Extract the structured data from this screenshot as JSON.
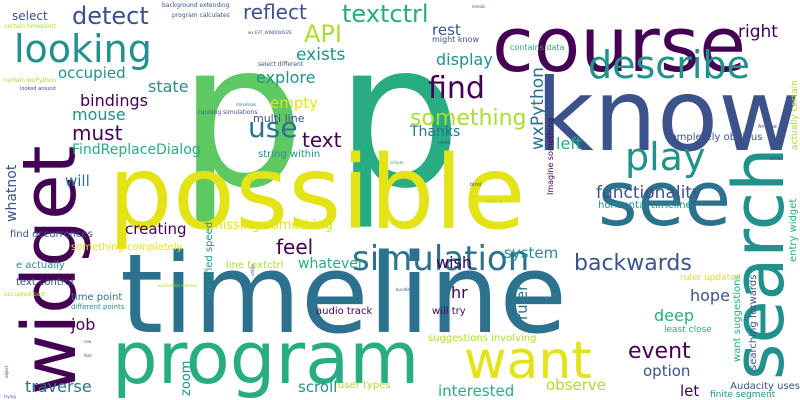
{
  "palette": {
    "dark_purple": "#440154",
    "indigo": "#3b528b",
    "blue": "#2c728e",
    "teal": "#21918c",
    "green": "#27ad81",
    "light_green": "#5ec962",
    "lime": "#addc30",
    "yellow": "#e2e418"
  },
  "words": [
    {
      "text": "p",
      "color": "light_green"
    },
    {
      "text": "p",
      "color": "green"
    },
    {
      "text": "timeline",
      "color": "blue"
    },
    {
      "text": "possible",
      "color": "yellow"
    },
    {
      "text": "know",
      "color": "indigo"
    },
    {
      "text": "course",
      "color": "dark_purple"
    },
    {
      "text": "widget",
      "color": "dark_purple"
    },
    {
      "text": "program",
      "color": "green"
    },
    {
      "text": "see",
      "color": "blue"
    },
    {
      "text": "search",
      "color": "teal"
    },
    {
      "text": "want",
      "color": "yellow"
    },
    {
      "text": "looking",
      "color": "teal"
    },
    {
      "text": "describe",
      "color": "teal"
    },
    {
      "text": "play",
      "color": "teal"
    },
    {
      "text": "simulation",
      "color": "blue"
    },
    {
      "text": "find",
      "color": "dark_purple"
    },
    {
      "text": "use",
      "color": "blue"
    },
    {
      "text": "detect",
      "color": "indigo"
    },
    {
      "text": "API",
      "color": "lime"
    },
    {
      "text": "textctrl",
      "color": "green"
    },
    {
      "text": "reflect",
      "color": "indigo"
    },
    {
      "text": "right",
      "color": "dark_purple"
    },
    {
      "text": "something",
      "color": "lime"
    },
    {
      "text": "text",
      "color": "dark_purple"
    },
    {
      "text": "must",
      "color": "dark_purple"
    },
    {
      "text": "feel",
      "color": "dark_purple"
    },
    {
      "text": "backwards",
      "color": "indigo"
    },
    {
      "text": "event",
      "color": "dark_purple"
    },
    {
      "text": "functionality",
      "color": "indigo"
    },
    {
      "text": "wxPython",
      "color": "blue"
    },
    {
      "text": "exists",
      "color": "teal"
    },
    {
      "text": "explore",
      "color": "teal"
    },
    {
      "text": "display",
      "color": "teal"
    },
    {
      "text": "occupied",
      "color": "teal"
    },
    {
      "text": "mouse",
      "color": "teal"
    },
    {
      "text": "state",
      "color": "teal"
    },
    {
      "text": "bindings",
      "color": "dark_purple"
    },
    {
      "text": "FindReplaceDialog",
      "color": "green"
    },
    {
      "text": "empty",
      "color": "yellow"
    },
    {
      "text": "Thanks",
      "color": "blue"
    },
    {
      "text": "rest",
      "color": "indigo"
    },
    {
      "text": "left",
      "color": "green"
    },
    {
      "text": "creating",
      "color": "dark_purple"
    },
    {
      "text": "whatever",
      "color": "green"
    },
    {
      "text": "wish",
      "color": "dark_purple"
    },
    {
      "text": "system",
      "color": "teal"
    },
    {
      "text": "hr",
      "color": "dark_purple"
    },
    {
      "text": "deep",
      "color": "green"
    },
    {
      "text": "hope",
      "color": "indigo"
    },
    {
      "text": "option",
      "color": "indigo"
    },
    {
      "text": "job",
      "color": "dark_purple"
    },
    {
      "text": "traverse",
      "color": "blue"
    },
    {
      "text": "scroll",
      "color": "teal"
    },
    {
      "text": "interested",
      "color": "green"
    },
    {
      "text": "observe",
      "color": "lime"
    },
    {
      "text": "let",
      "color": "dark_purple"
    },
    {
      "text": "zoom",
      "color": "teal"
    },
    {
      "text": "ruler",
      "color": "blue"
    },
    {
      "text": "will",
      "color": "blue"
    },
    {
      "text": "whatnot",
      "color": "indigo"
    },
    {
      "text": "missing something",
      "color": "yellow"
    },
    {
      "text": "specified speed",
      "color": "teal"
    },
    {
      "text": "select",
      "color": "indigo"
    },
    {
      "text": "multi line",
      "color": "indigo"
    },
    {
      "text": "string within",
      "color": "teal"
    },
    {
      "text": "completely obvious",
      "color": "indigo"
    },
    {
      "text": "horizontal timeline",
      "color": "teal"
    },
    {
      "text": "entry widget",
      "color": "green"
    },
    {
      "text": "want suggestions",
      "color": "green"
    },
    {
      "text": "searching forwards",
      "color": "indigo"
    },
    {
      "text": "Audacity uses",
      "color": "indigo"
    },
    {
      "text": "finite segment",
      "color": "teal"
    },
    {
      "text": "suggestions involving",
      "color": "lime"
    },
    {
      "text": "least close",
      "color": "green"
    },
    {
      "text": "ruler updates",
      "color": "yellow"
    },
    {
      "text": "audio track",
      "color": "dark_purple"
    },
    {
      "text": "will try",
      "color": "dark_purple"
    },
    {
      "text": "user types",
      "color": "lime"
    },
    {
      "text": "line textctrl",
      "color": "lime"
    },
    {
      "text": "find occurrences",
      "color": "indigo"
    },
    {
      "text": "e actually",
      "color": "teal"
    },
    {
      "text": "text control",
      "color": "indigo"
    },
    {
      "text": "time point",
      "color": "blue"
    },
    {
      "text": "something completely",
      "color": "yellow"
    },
    {
      "text": "occupied part",
      "color": "lime"
    },
    {
      "text": "different points",
      "color": "teal"
    },
    {
      "text": "contains data",
      "color": "green"
    },
    {
      "text": "might know",
      "color": "indigo"
    },
    {
      "text": "Imagine something",
      "color": "dark_purple"
    },
    {
      "text": "actually certain",
      "color": "lime"
    },
    {
      "text": "background extending",
      "color": "indigo"
    },
    {
      "text": "program calculates",
      "color": "indigo"
    },
    {
      "text": "certain timepoint",
      "color": "lime"
    },
    {
      "text": "select different",
      "color": "indigo"
    },
    {
      "text": "running simulations",
      "color": "indigo"
    },
    {
      "text": "certain wxPython",
      "color": "lime"
    },
    {
      "text": "looked around",
      "color": "indigo"
    },
    {
      "text": "wx EVT_WINDOWSIZE",
      "color": "indigo"
    },
    {
      "text": "bind",
      "color": "indigo"
    },
    {
      "text": "need",
      "color": "indigo"
    },
    {
      "text": "Anyone",
      "color": "indigo"
    },
    {
      "text": "small",
      "color": "indigo"
    },
    {
      "text": "writing",
      "color": "lime"
    },
    {
      "text": "minimizes",
      "color": "blue"
    },
    {
      "text": "emails",
      "color": "indigo"
    },
    {
      "text": "application window",
      "color": "lime"
    },
    {
      "text": "font",
      "color": "indigo"
    },
    {
      "text": "row",
      "color": "indigo"
    },
    {
      "text": "bundle",
      "color": "indigo"
    },
    {
      "text": "trying",
      "color": "indigo"
    },
    {
      "text": "utility",
      "color": "indigo"
    },
    {
      "text": "object",
      "color": "indigo"
    },
    {
      "text": "simple",
      "color": "green"
    }
  ]
}
